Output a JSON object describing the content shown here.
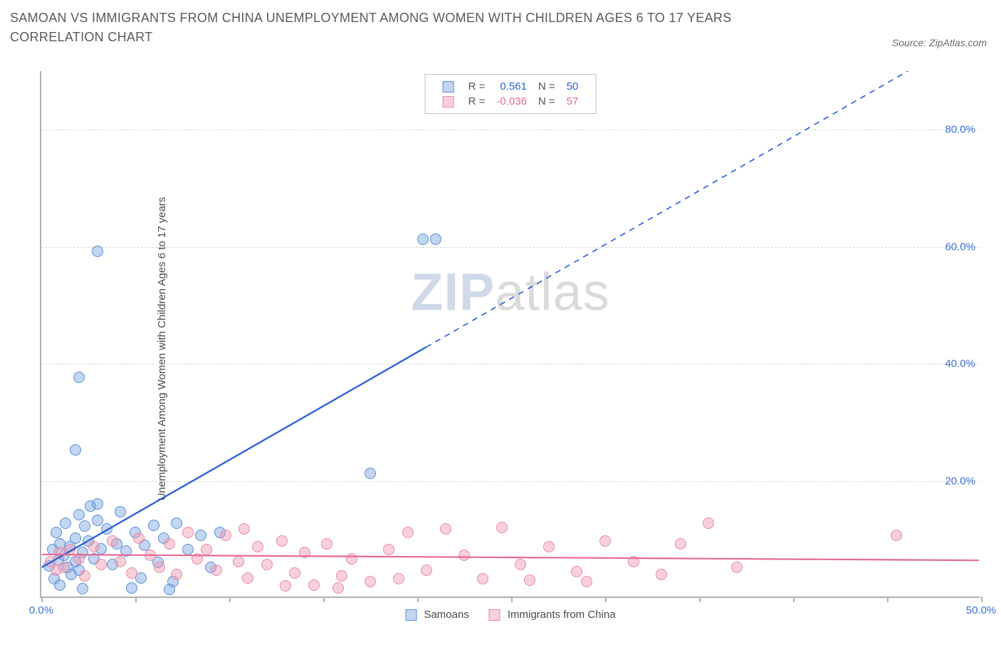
{
  "title": "SAMOAN VS IMMIGRANTS FROM CHINA UNEMPLOYMENT AMONG WOMEN WITH CHILDREN AGES 6 TO 17 YEARS CORRELATION CHART",
  "source": "Source: ZipAtlas.com",
  "ylabel": "Unemployment Among Women with Children Ages 6 to 17 years",
  "watermark_a": "ZIP",
  "watermark_b": "atlas",
  "chart": {
    "type": "scatter",
    "xlim": [
      0,
      50
    ],
    "ylim": [
      0,
      90
    ],
    "x_ticks": [
      0,
      5,
      10,
      15,
      20,
      25,
      30,
      35,
      40,
      45,
      50
    ],
    "x_tick_labels": {
      "0": "0.0%",
      "50": "50.0%"
    },
    "y_ticks": [
      20,
      40,
      60,
      80
    ],
    "y_tick_labels": {
      "20": "20.0%",
      "40": "40.0%",
      "60": "60.0%",
      "80": "80.0%"
    },
    "background_color": "#ffffff",
    "grid_color": "#d8d8d8",
    "axis_color": "#b0b0b0",
    "tick_label_color": "#3a6fd8",
    "title_color": "#5a5a5a",
    "title_fontsize": 18,
    "label_fontsize": 15,
    "marker_radius": 8,
    "marker_stroke_width": 1.2,
    "series": [
      {
        "name": "Samoans",
        "fill": "rgba(120,165,225,0.45)",
        "stroke": "#5a8fd6",
        "trend_color": "#2e62d9",
        "trend_width": 2.4,
        "R": "0.561",
        "N": "50",
        "trend": {
          "y_at_x0": 5.0,
          "y_at_x50": 97.0,
          "solid_until_x": 20.5
        },
        "points": [
          [
            0.4,
            5.2
          ],
          [
            0.6,
            8.0
          ],
          [
            0.7,
            3.1
          ],
          [
            0.8,
            11.0
          ],
          [
            0.9,
            6.2
          ],
          [
            1.0,
            9.0
          ],
          [
            1.0,
            2.0
          ],
          [
            1.2,
            7.0
          ],
          [
            1.3,
            12.5
          ],
          [
            1.4,
            5.0
          ],
          [
            1.5,
            8.5
          ],
          [
            1.6,
            3.8
          ],
          [
            1.8,
            10.0
          ],
          [
            1.8,
            6.0
          ],
          [
            2.0,
            14.0
          ],
          [
            2.0,
            4.5
          ],
          [
            2.2,
            7.5
          ],
          [
            2.3,
            12.0
          ],
          [
            2.5,
            9.5
          ],
          [
            2.6,
            15.5
          ],
          [
            2.8,
            6.5
          ],
          [
            3.0,
            13.0
          ],
          [
            3.0,
            15.8
          ],
          [
            3.2,
            8.2
          ],
          [
            3.5,
            11.5
          ],
          [
            3.8,
            5.5
          ],
          [
            4.0,
            9.0
          ],
          [
            4.2,
            14.5
          ],
          [
            4.5,
            7.8
          ],
          [
            5.0,
            11.0
          ],
          [
            5.3,
            3.2
          ],
          [
            5.5,
            8.8
          ],
          [
            6.0,
            12.2
          ],
          [
            6.2,
            5.8
          ],
          [
            6.5,
            10.0
          ],
          [
            7.0,
            2.5
          ],
          [
            7.2,
            12.5
          ],
          [
            7.8,
            8.0
          ],
          [
            8.5,
            10.5
          ],
          [
            9.0,
            5.0
          ],
          [
            9.5,
            11.0
          ],
          [
            2.0,
            37.5
          ],
          [
            3.0,
            59.0
          ],
          [
            1.8,
            25.0
          ],
          [
            17.5,
            21.0
          ],
          [
            20.3,
            61.0
          ],
          [
            21.0,
            61.0
          ],
          [
            2.2,
            1.3
          ],
          [
            4.8,
            1.5
          ],
          [
            6.8,
            1.2
          ]
        ]
      },
      {
        "name": "Immigrants from China",
        "fill": "rgba(240,150,175,0.45)",
        "stroke": "#e88aa5",
        "trend_color": "#e76a93",
        "trend_width": 2.2,
        "R": "-0.036",
        "N": "57",
        "trend": {
          "y_at_x0": 7.2,
          "y_at_x50": 6.2,
          "solid_until_x": 50
        },
        "points": [
          [
            0.5,
            6.0
          ],
          [
            0.8,
            4.5
          ],
          [
            1.0,
            7.5
          ],
          [
            1.2,
            5.0
          ],
          [
            1.5,
            8.0
          ],
          [
            2.0,
            6.5
          ],
          [
            2.3,
            3.5
          ],
          [
            2.8,
            8.5
          ],
          [
            3.2,
            5.5
          ],
          [
            3.8,
            9.5
          ],
          [
            4.2,
            6.0
          ],
          [
            4.8,
            4.0
          ],
          [
            5.2,
            10.0
          ],
          [
            5.8,
            7.0
          ],
          [
            6.3,
            5.0
          ],
          [
            6.8,
            9.0
          ],
          [
            7.2,
            3.8
          ],
          [
            7.8,
            11.0
          ],
          [
            8.3,
            6.5
          ],
          [
            8.8,
            8.0
          ],
          [
            9.3,
            4.5
          ],
          [
            9.8,
            10.5
          ],
          [
            10.5,
            6.0
          ],
          [
            11.0,
            3.2
          ],
          [
            11.5,
            8.5
          ],
          [
            12.0,
            5.5
          ],
          [
            12.8,
            9.5
          ],
          [
            13.5,
            4.0
          ],
          [
            14.0,
            7.5
          ],
          [
            14.5,
            2.0
          ],
          [
            15.2,
            9.0
          ],
          [
            16.0,
            3.5
          ],
          [
            16.5,
            6.5
          ],
          [
            17.5,
            2.5
          ],
          [
            18.5,
            8.0
          ],
          [
            19.5,
            11.0
          ],
          [
            20.5,
            4.5
          ],
          [
            21.5,
            11.5
          ],
          [
            22.5,
            7.0
          ],
          [
            23.5,
            3.0
          ],
          [
            24.5,
            11.8
          ],
          [
            25.5,
            5.5
          ],
          [
            27.0,
            8.5
          ],
          [
            28.5,
            4.2
          ],
          [
            30.0,
            9.5
          ],
          [
            31.5,
            6.0
          ],
          [
            33.0,
            3.8
          ],
          [
            34.0,
            9.0
          ],
          [
            35.5,
            12.5
          ],
          [
            37.0,
            5.0
          ],
          [
            45.5,
            10.5
          ],
          [
            29.0,
            2.5
          ],
          [
            26.0,
            2.8
          ],
          [
            13.0,
            1.8
          ],
          [
            15.8,
            1.5
          ],
          [
            10.8,
            11.5
          ],
          [
            19.0,
            3.0
          ]
        ]
      }
    ],
    "legend_top": {
      "R_label": "R =",
      "N_label": "N ="
    },
    "legend_bottom_labels": [
      "Samoans",
      "Immigrants from China"
    ]
  }
}
